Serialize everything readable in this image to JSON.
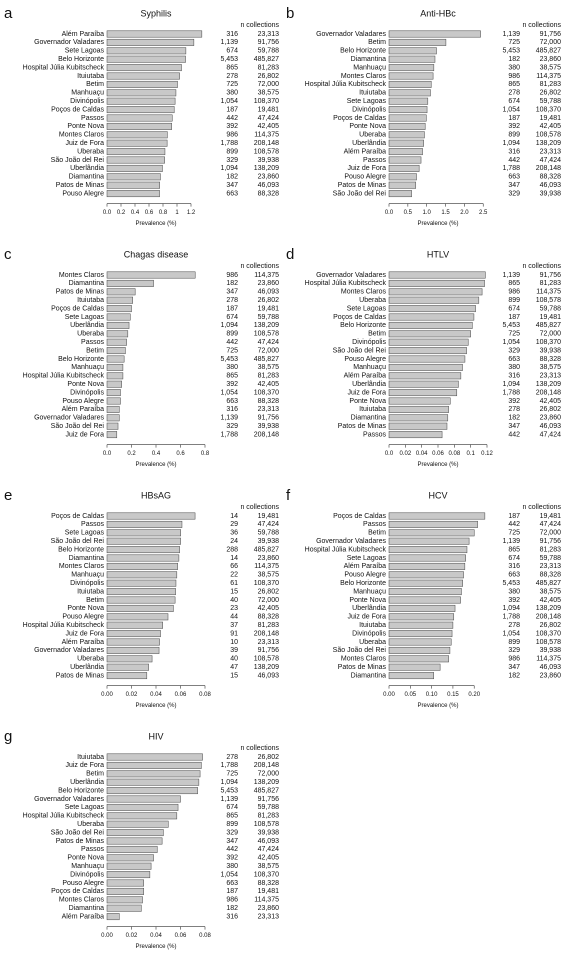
{
  "chart_data": [
    {
      "type": "bar",
      "orientation": "horizontal",
      "panel": "a",
      "title": "Syphilis",
      "column_header": "n collections",
      "x_label": "Prevalence (%)",
      "color": "#c8c8c8",
      "categories": [
        "Além Paraíba",
        "Governador Valadares",
        "Sete Lagoas",
        "Belo Horizonte",
        "Hospital Júlia Kubitscheck",
        "Ituiutaba",
        "Betim",
        "Manhuaçu",
        "Divinópolis",
        "Poços de Caldas",
        "Passos",
        "Ponte Nova",
        "Montes Claros",
        "Juiz de Fora",
        "Uberaba",
        "São João del Rei",
        "Uberlândia",
        "Diamantina",
        "Patos de Minas",
        "Pouso Alegre"
      ],
      "values": [
        1.355,
        1.241,
        1.127,
        1.122,
        1.064,
        1.037,
        1.007,
        0.985,
        0.973,
        0.96,
        0.932,
        0.924,
        0.862,
        0.859,
        0.828,
        0.824,
        0.792,
        0.763,
        0.753,
        0.751
      ],
      "counts": [
        "316",
        "1,139",
        "674",
        "5,453",
        "865",
        "278",
        "725",
        "380",
        "1,054",
        "187",
        "442",
        "392",
        "986",
        "1,788",
        "899",
        "329",
        "1,094",
        "182",
        "347",
        "663"
      ],
      "collections": [
        "23,313",
        "91,756",
        "59,788",
        "485,827",
        "81,283",
        "26,802",
        "72,000",
        "38,575",
        "108,370",
        "19,481",
        "47,424",
        "42,405",
        "114,375",
        "208,148",
        "108,578",
        "39,938",
        "138,209",
        "23,860",
        "46,093",
        "88,328"
      ],
      "xlim": [
        0,
        1.4
      ],
      "xticks": [
        {
          "value": 0,
          "label": "0.0"
        },
        0.2,
        0.4,
        0.6,
        0.8,
        1,
        1.2
      ]
    },
    {
      "type": "bar",
      "orientation": "horizontal",
      "panel": "b",
      "title": "Anti-HBc",
      "column_header": "n collections",
      "x_label": "Prevalence (%)",
      "color": "#c8c8c8",
      "categories": [
        "Governador Valadares",
        "Betim",
        "Belo Horizonte",
        "Diamantina",
        "Manhuaçu",
        "Montes Claros",
        "Hospital Júlia Kubitscheck",
        "Ituiutaba",
        "Sete Lagoas",
        "Divinópolis",
        "Poços de Caldas",
        "Ponte Nova",
        "Uberaba",
        "Uberlândia",
        "Além Paraíba",
        "Passos",
        "Juiz de Fora",
        "Pouso Alegre",
        "Patos de Minas",
        "São João del Rei"
      ],
      "values": [
        2.43,
        1.51,
        1.26,
        1.22,
        1.19,
        1.17,
        1.12,
        1.1,
        1.03,
        1.01,
        0.99,
        0.96,
        0.94,
        0.92,
        0.89,
        0.85,
        0.8,
        0.73,
        0.71,
        0.6
      ],
      "counts": [
        "1,139",
        "725",
        "5,453",
        "182",
        "380",
        "986",
        "865",
        "278",
        "674",
        "1,054",
        "187",
        "392",
        "899",
        "1,094",
        "316",
        "442",
        "1,788",
        "663",
        "347",
        "329"
      ],
      "collections": [
        "91,756",
        "72,000",
        "485,827",
        "23,860",
        "38,575",
        "114,375",
        "81,283",
        "26,802",
        "59,788",
        "108,370",
        "19,481",
        "42,405",
        "108,578",
        "138,209",
        "23,313",
        "47,424",
        "208,148",
        "88,328",
        "46,093",
        "39,938"
      ],
      "xlim": [
        0,
        2.6
      ],
      "xticks": [
        {
          "value": 0,
          "label": "0.0"
        },
        0.5,
        {
          "value": 1,
          "label": "1.0"
        },
        1.5,
        {
          "value": 2,
          "label": "2.0"
        },
        2.5
      ]
    },
    {
      "type": "bar",
      "orientation": "horizontal",
      "panel": "c",
      "title": "Chagas disease",
      "column_header": "n collections",
      "x_label": "Prevalence (%)",
      "color": "#c8c8c8",
      "categories": [
        "Montes Claros",
        "Diamantina",
        "Patos de Minas",
        "Ituiutaba",
        "Poços de Caldas",
        "Sete Lagoas",
        "Uberlândia",
        "Uberaba",
        "Passos",
        "Betim",
        "Belo Horizonte",
        "Manhuaçu",
        "Hospital Júlia Kubitscheck",
        "Ponte Nova",
        "Divinópolis",
        "Pouso Alegre",
        "Além Paraíba",
        "Governador Valadares",
        "São João del Rei",
        "Juiz de Fora"
      ],
      "values": [
        0.72,
        0.38,
        0.23,
        0.21,
        0.2,
        0.19,
        0.18,
        0.17,
        0.16,
        0.15,
        0.14,
        0.13,
        0.13,
        0.12,
        0.11,
        0.11,
        0.1,
        0.1,
        0.09,
        0.08
      ],
      "counts": [
        "986",
        "182",
        "347",
        "278",
        "187",
        "674",
        "1,094",
        "899",
        "442",
        "725",
        "5,453",
        "380",
        "865",
        "392",
        "1,054",
        "663",
        "316",
        "1,139",
        "329",
        "1,788"
      ],
      "collections": [
        "114,375",
        "23,860",
        "46,093",
        "26,802",
        "19,481",
        "59,788",
        "138,209",
        "108,578",
        "47,424",
        "72,000",
        "485,827",
        "38,575",
        "81,283",
        "42,405",
        "108,370",
        "88,328",
        "23,313",
        "91,756",
        "39,938",
        "208,148"
      ],
      "xlim": [
        0,
        0.8
      ],
      "xticks": [
        {
          "value": 0,
          "label": "0.0"
        },
        0.2,
        0.4,
        0.6,
        0.8
      ]
    },
    {
      "type": "bar",
      "orientation": "horizontal",
      "panel": "d",
      "title": "HTLV",
      "column_header": "n collections",
      "x_label": "Prevalence (%)",
      "color": "#c8c8c8",
      "categories": [
        "Governador Valadares",
        "Hospital Júlia Kubitscheck",
        "Montes Claros",
        "Uberaba",
        "Sete Lagoas",
        "Poços de Caldas",
        "Belo Horizonte",
        "Betim",
        "Divinópolis",
        "São João del Rei",
        "Pouso Alegre",
        "Manhuaçu",
        "Além Paraíba",
        "Uberlândia",
        "Juiz de Fora",
        "Ponte Nova",
        "Ituiutaba",
        "Diamantina",
        "Patos de Minas",
        "Passos"
      ],
      "values": [
        0.118,
        0.117,
        0.114,
        0.11,
        0.106,
        0.104,
        0.102,
        0.1,
        0.097,
        0.095,
        0.093,
        0.09,
        0.088,
        0.085,
        0.083,
        0.075,
        0.073,
        0.072,
        0.071,
        0.065
      ],
      "counts": [
        "1,139",
        "865",
        "986",
        "899",
        "674",
        "187",
        "5,453",
        "725",
        "1,054",
        "329",
        "663",
        "380",
        "316",
        "1,094",
        "1,788",
        "392",
        "278",
        "182",
        "347",
        "442"
      ],
      "collections": [
        "91,756",
        "81,283",
        "114,375",
        "108,578",
        "59,788",
        "19,481",
        "485,827",
        "72,000",
        "108,370",
        "39,938",
        "88,328",
        "38,575",
        "23,313",
        "138,209",
        "208,148",
        "42,405",
        "26,802",
        "23,860",
        "46,093",
        "47,424"
      ],
      "xlim": [
        0,
        0.12
      ],
      "xticks": [
        {
          "value": 0,
          "label": "0.0"
        },
        0.02,
        0.04,
        0.06,
        0.08,
        0.1,
        0.12
      ]
    },
    {
      "type": "bar",
      "orientation": "horizontal",
      "panel": "e",
      "title": "HBsAG",
      "column_header": "n collections",
      "x_label": "Prevalence (%)",
      "color": "#c8c8c8",
      "categories": [
        "Poços de Caldas",
        "Passos",
        "Sete Lagoas",
        "São João del Rei",
        "Belo Horizonte",
        "Diamantina",
        "Montes Claros",
        "Manhuaçu",
        "Divinópolis",
        "Ituiutaba",
        "Betim",
        "Ponte Nova",
        "Pouso Alegre",
        "Hospital Júlia Kubitscheck",
        "Juiz de Fora",
        "Além Paraíba",
        "Governador Valadares",
        "Uberaba",
        "Uberlândia",
        "Patos de Minas"
      ],
      "values": [
        0.0719,
        0.0612,
        0.0602,
        0.0601,
        0.0593,
        0.0587,
        0.0577,
        0.057,
        0.0563,
        0.056,
        0.0556,
        0.0542,
        0.0498,
        0.0455,
        0.0437,
        0.0429,
        0.0425,
        0.0368,
        0.034,
        0.0325
      ],
      "counts": [
        "14",
        "29",
        "36",
        "24",
        "288",
        "14",
        "66",
        "22",
        "61",
        "15",
        "40",
        "23",
        "44",
        "37",
        "91",
        "10",
        "39",
        "40",
        "47",
        "15"
      ],
      "collections": [
        "19,481",
        "47,424",
        "59,788",
        "39,938",
        "485,827",
        "23,860",
        "114,375",
        "38,575",
        "108,370",
        "26,802",
        "72,000",
        "42,405",
        "88,328",
        "81,283",
        "208,148",
        "23,313",
        "91,756",
        "108,578",
        "138,209",
        "46,093"
      ],
      "xlim": [
        0,
        0.08
      ],
      "xticks": [
        {
          "value": 0,
          "label": "0.00"
        },
        0.02,
        0.04,
        0.06,
        0.08
      ]
    },
    {
      "type": "bar",
      "orientation": "horizontal",
      "panel": "f",
      "title": "HCV",
      "column_header": "n collections",
      "x_label": "Prevalence (%)",
      "color": "#c8c8c8",
      "categories": [
        "Poços de Caldas",
        "Passos",
        "Betim",
        "Governador Valadares",
        "Hospital Júlia Kubitscheck",
        "Sete Lagoas",
        "Além Paraíba",
        "Pouso Alegre",
        "Belo Horizonte",
        "Manhuaçu",
        "Ponte Nova",
        "Uberlândia",
        "Juiz de Fora",
        "Ituiutaba",
        "Divinópolis",
        "Uberaba",
        "São João del Rei",
        "Montes Claros",
        "Patos de Minas",
        "Diamantina"
      ],
      "values": [
        0.225,
        0.208,
        0.2,
        0.188,
        0.183,
        0.18,
        0.178,
        0.175,
        0.173,
        0.17,
        0.168,
        0.155,
        0.152,
        0.15,
        0.148,
        0.146,
        0.143,
        0.14,
        0.12,
        0.105
      ],
      "counts": [
        "187",
        "442",
        "725",
        "1,139",
        "865",
        "674",
        "316",
        "663",
        "5,453",
        "380",
        "392",
        "1,094",
        "1,788",
        "278",
        "1,054",
        "899",
        "329",
        "986",
        "347",
        "182"
      ],
      "collections": [
        "19,481",
        "47,424",
        "72,000",
        "91,756",
        "81,283",
        "59,788",
        "23,313",
        "88,328",
        "485,827",
        "38,575",
        "42,405",
        "138,209",
        "208,148",
        "26,802",
        "108,370",
        "108,578",
        "39,938",
        "114,375",
        "46,093",
        "23,860"
      ],
      "xlim": [
        0,
        0.23
      ],
      "xticks": [
        {
          "value": 0,
          "label": "0.00"
        },
        0.05,
        {
          "value": 0.1,
          "label": "0.10"
        },
        0.15,
        {
          "value": 0.2,
          "label": "0.20"
        }
      ]
    },
    {
      "type": "bar",
      "orientation": "horizontal",
      "panel": "g",
      "title": "HIV",
      "column_header": "n collections",
      "x_label": "Prevalence (%)",
      "color": "#c8c8c8",
      "categories": [
        "Ituiutaba",
        "Juiz de Fora",
        "Betim",
        "Uberlândia",
        "Belo Horizonte",
        "Governador Valadares",
        "Sete Lagoas",
        "Hospital Júlia Kubitscheck",
        "Uberaba",
        "São João del Rei",
        "Patos de Minas",
        "Passos",
        "Ponte Nova",
        "Manhuaçu",
        "Divinópolis",
        "Pouso Alegre",
        "Poços de Caldas",
        "Montes Claros",
        "Diamantina",
        "Além Paraíba"
      ],
      "values": [
        0.078,
        0.077,
        0.076,
        0.075,
        0.074,
        0.06,
        0.058,
        0.057,
        0.05,
        0.046,
        0.045,
        0.041,
        0.038,
        0.036,
        0.035,
        0.03,
        0.03,
        0.029,
        0.028,
        0.01
      ],
      "counts": [
        "278",
        "1,788",
        "725",
        "1,094",
        "5,453",
        "1,139",
        "674",
        "865",
        "899",
        "329",
        "347",
        "442",
        "392",
        "380",
        "1,054",
        "663",
        "187",
        "986",
        "182",
        "316"
      ],
      "collections": [
        "26,802",
        "208,148",
        "72,000",
        "138,209",
        "485,827",
        "91,756",
        "59,788",
        "81,283",
        "108,578",
        "39,938",
        "46,093",
        "47,424",
        "42,405",
        "38,575",
        "108,370",
        "88,328",
        "19,481",
        "114,375",
        "23,860",
        "23,313"
      ],
      "xlim": [
        0,
        0.08
      ],
      "xticks": [
        {
          "value": 0,
          "label": "0.00"
        },
        0.02,
        0.04,
        0.06,
        0.08
      ]
    }
  ]
}
